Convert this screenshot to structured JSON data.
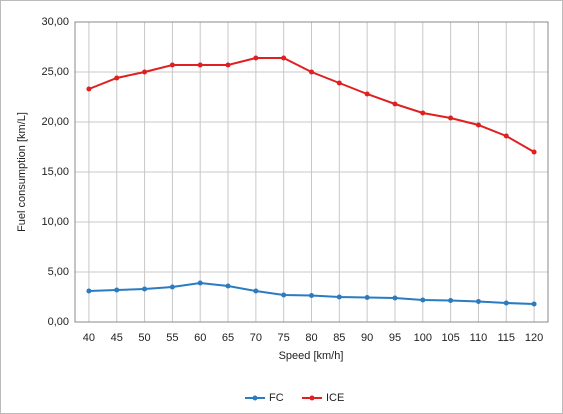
{
  "chart_data": {
    "type": "line",
    "xlabel": "Speed [km/h]",
    "ylabel": "Fuel consumption [km/L]",
    "categories": [
      "40",
      "45",
      "50",
      "55",
      "60",
      "65",
      "70",
      "75",
      "80",
      "85",
      "90",
      "95",
      "100",
      "105",
      "110",
      "115",
      "120"
    ],
    "series": [
      {
        "name": "FC",
        "color": "#2b7bc0",
        "values": [
          3.1,
          3.2,
          3.3,
          3.5,
          3.9,
          3.6,
          3.1,
          2.7,
          2.65,
          2.5,
          2.45,
          2.4,
          2.2,
          2.15,
          2.05,
          1.9,
          1.8
        ]
      },
      {
        "name": "ICE",
        "color": "#e02020",
        "values": [
          23.3,
          24.4,
          25.0,
          25.7,
          25.7,
          25.7,
          26.4,
          26.4,
          25.0,
          23.9,
          22.8,
          21.8,
          20.9,
          20.4,
          19.7,
          18.6,
          17.0
        ]
      }
    ],
    "ylim": [
      0,
      30
    ],
    "yticks": [
      {
        "value": 0,
        "label": "0,00"
      },
      {
        "value": 5,
        "label": "5,00"
      },
      {
        "value": 10,
        "label": "10,00"
      },
      {
        "value": 15,
        "label": "15,00"
      },
      {
        "value": 20,
        "label": "20,00"
      },
      {
        "value": 25,
        "label": "25,00"
      },
      {
        "value": 30,
        "label": "30,00"
      }
    ],
    "grid": true,
    "legend": "bottom"
  }
}
